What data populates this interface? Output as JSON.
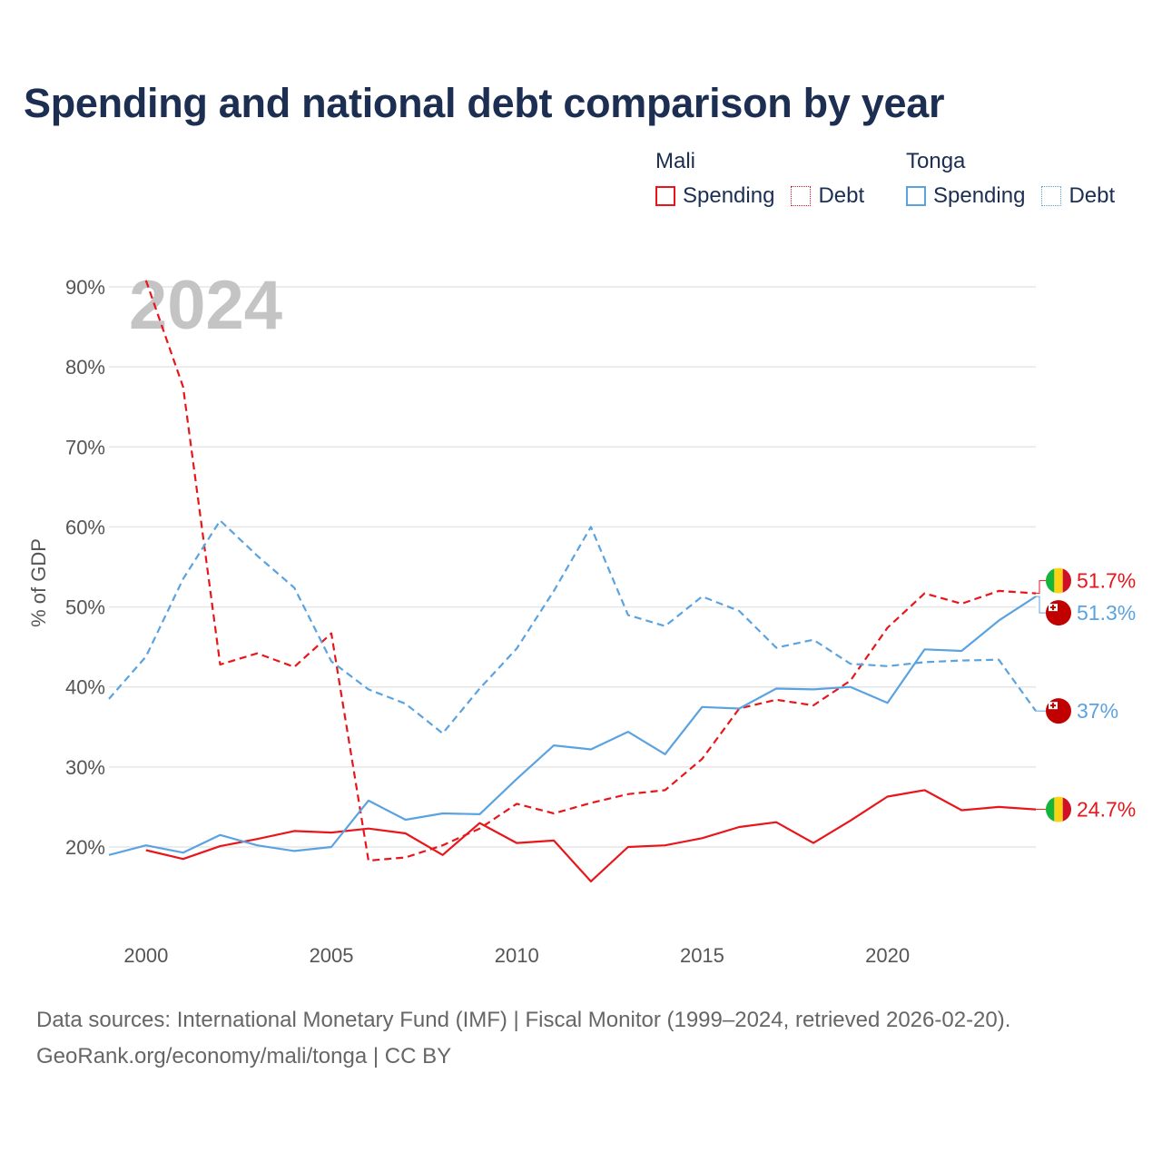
{
  "title": "Spending and national debt comparison by year",
  "legend": {
    "groups": [
      {
        "country": "Mali",
        "color": "#e8161b",
        "items": [
          "Spending",
          "Debt"
        ]
      },
      {
        "country": "Tonga",
        "color": "#5ba3e0",
        "items": [
          "Spending",
          "Debt"
        ]
      }
    ]
  },
  "chart_data": {
    "type": "line",
    "watermark_year": "2024",
    "ylabel": "% of GDP",
    "xlabel": "",
    "xlim": [
      1999,
      2024
    ],
    "ylim": [
      10,
      92
    ],
    "x_ticks": [
      2000,
      2005,
      2010,
      2015,
      2020
    ],
    "y_ticks": [
      20,
      30,
      40,
      50,
      60,
      70,
      80,
      90
    ],
    "y_tick_labels": [
      "20%",
      "30%",
      "40%",
      "50%",
      "60%",
      "70%",
      "80%",
      "90%"
    ],
    "grid": true,
    "series": [
      {
        "name": "Mali Spending",
        "country": "Mali",
        "metric": "Spending",
        "style": "solid",
        "color": "#e8161b",
        "x": [
          2000,
          2001,
          2002,
          2003,
          2004,
          2005,
          2006,
          2007,
          2008,
          2009,
          2010,
          2011,
          2012,
          2013,
          2014,
          2015,
          2016,
          2017,
          2018,
          2019,
          2020,
          2021,
          2022,
          2023,
          2024
        ],
        "values": [
          19.6,
          18.5,
          20.1,
          21.0,
          22.0,
          21.8,
          22.3,
          21.7,
          19.0,
          23.0,
          20.5,
          20.8,
          15.7,
          20.0,
          20.2,
          21.1,
          22.5,
          23.1,
          20.5,
          23.3,
          26.3,
          27.1,
          24.6,
          25.0,
          24.7
        ],
        "end_label": "24.7%",
        "end_value": 24.7
      },
      {
        "name": "Mali Debt",
        "country": "Mali",
        "metric": "Debt",
        "style": "dashed",
        "color": "#e8161b",
        "x": [
          2000,
          2001,
          2002,
          2003,
          2004,
          2005,
          2006,
          2007,
          2008,
          2009,
          2010,
          2011,
          2012,
          2013,
          2014,
          2015,
          2016,
          2017,
          2018,
          2019,
          2020,
          2021,
          2022,
          2023,
          2024
        ],
        "values": [
          90.8,
          77.5,
          42.8,
          44.2,
          42.5,
          46.7,
          18.3,
          18.7,
          20.2,
          22.3,
          25.4,
          24.2,
          25.5,
          26.6,
          27.1,
          31.0,
          37.3,
          38.4,
          37.7,
          40.8,
          47.4,
          51.7,
          50.4,
          52.0,
          51.7
        ],
        "end_label": "51.7%",
        "end_value": 51.7
      },
      {
        "name": "Tonga Spending",
        "country": "Tonga",
        "metric": "Spending",
        "style": "solid",
        "color": "#5ba3e0",
        "x": [
          1999,
          2000,
          2001,
          2002,
          2003,
          2004,
          2005,
          2006,
          2007,
          2008,
          2009,
          2010,
          2011,
          2012,
          2013,
          2014,
          2015,
          2016,
          2017,
          2018,
          2019,
          2020,
          2021,
          2022,
          2023,
          2024
        ],
        "values": [
          19.0,
          20.2,
          19.3,
          21.5,
          20.2,
          19.5,
          20.0,
          25.8,
          23.4,
          24.2,
          24.1,
          28.5,
          32.7,
          32.2,
          34.4,
          31.6,
          37.5,
          37.3,
          39.8,
          39.7,
          40.0,
          38.0,
          44.7,
          44.5,
          48.3,
          51.3
        ],
        "end_label": "51.3%",
        "end_value": 51.3
      },
      {
        "name": "Tonga Debt",
        "country": "Tonga",
        "metric": "Debt",
        "style": "dashed",
        "color": "#5ba3e0",
        "x": [
          1999,
          2000,
          2001,
          2002,
          2003,
          2004,
          2005,
          2006,
          2007,
          2008,
          2009,
          2010,
          2011,
          2012,
          2013,
          2014,
          2015,
          2016,
          2017,
          2018,
          2019,
          2020,
          2021,
          2022,
          2023,
          2024
        ],
        "values": [
          38.5,
          43.8,
          53.5,
          60.8,
          56.4,
          52.4,
          43.2,
          39.7,
          37.9,
          34.2,
          39.8,
          44.8,
          52.0,
          60.0,
          49.0,
          47.6,
          51.3,
          49.5,
          44.9,
          45.9,
          42.9,
          42.6,
          43.1,
          43.3,
          43.4,
          37.0
        ],
        "end_label": "37%",
        "end_value": 37.0
      }
    ]
  },
  "source": {
    "line1": "Data sources: International Monetary Fund (IMF) | Fiscal Monitor (1999–2024, retrieved 2026-02-20).",
    "line2": "GeoRank.org/economy/mali/tonga | CC BY"
  }
}
